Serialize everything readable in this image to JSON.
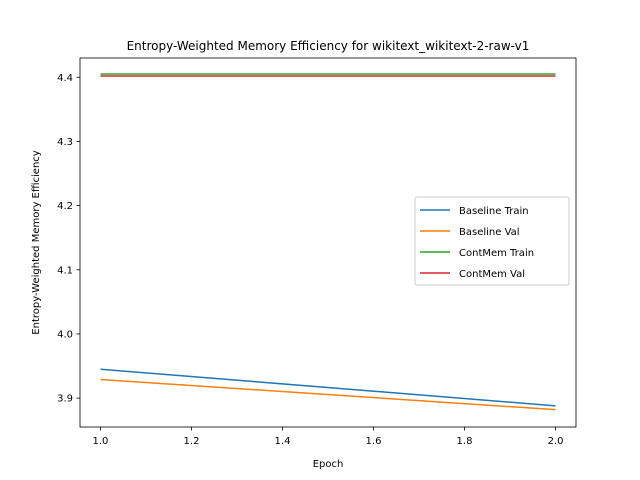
{
  "chart_data": {
    "type": "line",
    "title": "Entropy-Weighted Memory Efficiency for wikitext_wikitext-2-raw-v1",
    "xlabel": "Epoch",
    "ylabel": "Entropy-Weighted Memory Efficiency",
    "xlim": [
      0.955,
      2.045
    ],
    "ylim": [
      3.855,
      4.43
    ],
    "x_ticks": [
      "1.0",
      "1.2",
      "1.4",
      "1.6",
      "1.8",
      "2.0"
    ],
    "y_ticks": [
      "3.9",
      "4.0",
      "4.1",
      "4.2",
      "4.3",
      "4.4"
    ],
    "grid": false,
    "legend_position": "center-right",
    "x": [
      1.0,
      2.0
    ],
    "series": [
      {
        "name": "Baseline Train",
        "color": "#1f77b4",
        "values": [
          3.945,
          3.888
        ]
      },
      {
        "name": "Baseline Val",
        "color": "#ff7f0e",
        "values": [
          3.929,
          3.882
        ]
      },
      {
        "name": "ContMem Train",
        "color": "#2ca02c",
        "values": [
          4.405,
          4.405
        ]
      },
      {
        "name": "ContMem Val",
        "color": "#d62728",
        "values": [
          4.402,
          4.402
        ]
      }
    ]
  }
}
